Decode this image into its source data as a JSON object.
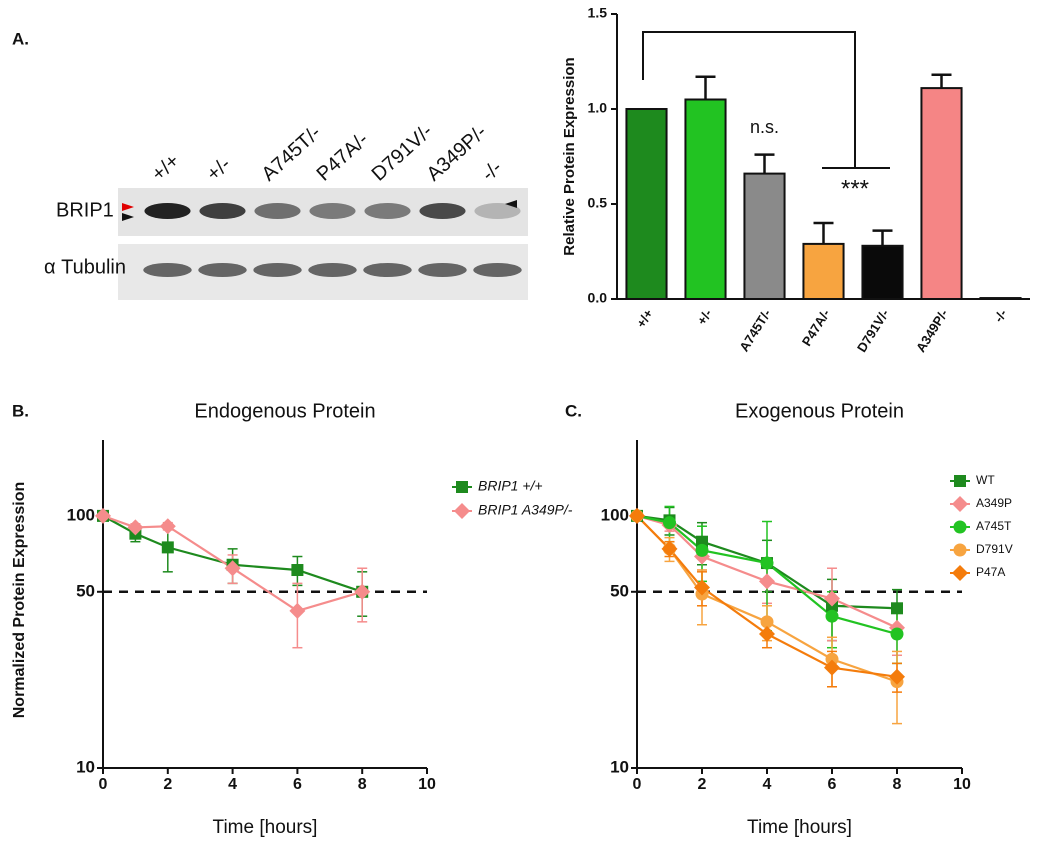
{
  "panel_labels": [
    "A.",
    "B.",
    "C."
  ],
  "blot": {
    "lanes": [
      "+/+",
      "+/-",
      "A745T/-",
      "P47A/-",
      "D791V/-",
      "A349P/-",
      "-/-"
    ],
    "rows": [
      "BRIP1",
      "α Tubulin"
    ]
  },
  "chart_data": [
    {
      "type": "bar",
      "ylabel": "Relative Protein Expression",
      "categories": [
        "+/+",
        "+/-",
        "A745T/-",
        "P47A/-",
        "D791V/-",
        "A349P/-",
        "-/-"
      ],
      "values": [
        1.0,
        1.05,
        0.66,
        0.29,
        0.28,
        1.11,
        0.005
      ],
      "errors": [
        0,
        0.12,
        0.1,
        0.11,
        0.08,
        0.07,
        0
      ],
      "colors": [
        "#1e8a1e",
        "#22c322",
        "#8a8a8a",
        "#f7a440",
        "#0a0a0a",
        "#f58585",
        "#888888"
      ],
      "ylim": [
        0,
        1.5
      ],
      "yticks": [
        {
          "value": 0,
          "label": "0.0"
        },
        {
          "value": 0.5,
          "label": "0.5"
        },
        {
          "value": 1,
          "label": "1.0"
        },
        {
          "value": 1.5,
          "label": "1.5"
        }
      ],
      "annotations": [
        "n.s.",
        "***"
      ]
    },
    {
      "type": "line",
      "title": "Endogenous Protein",
      "xlabel": "Time [hours]",
      "ylabel": "Normalized Protein Expression",
      "x": [
        0,
        1,
        2,
        4,
        6,
        8
      ],
      "series": [
        {
          "name": "BRIP1 +/+",
          "color": "#1e8a1e",
          "marker": "square",
          "values": [
            100,
            85,
            75,
            64,
            61,
            50
          ],
          "errors": [
            0,
            6,
            15,
            10,
            8,
            10
          ]
        },
        {
          "name": "BRIP1 A349P/-",
          "color": "#f58c8c",
          "marker": "diamond",
          "values": [
            100,
            90,
            91,
            62,
            42,
            50
          ],
          "errors": [
            0,
            3,
            3,
            8,
            12,
            12
          ]
        }
      ],
      "xlim": [
        0,
        10
      ],
      "xticks": [
        0,
        2,
        4,
        6,
        8,
        10
      ],
      "ylog": true,
      "ylim": [
        10,
        200
      ],
      "yticks": [
        10,
        50,
        100
      ],
      "reference_line": 50
    },
    {
      "type": "line",
      "title": "Exogenous Protein",
      "xlabel": "Time [hours]",
      "x": [
        0,
        1,
        2,
        4,
        6,
        8
      ],
      "series": [
        {
          "name": "WT",
          "color": "#1e8a1e",
          "marker": "square",
          "values": [
            100,
            96,
            79,
            65,
            44,
            43
          ],
          "errors": [
            0,
            12,
            15,
            15,
            12,
            8
          ]
        },
        {
          "name": "A349P",
          "color": "#f58c8c",
          "marker": "diamond",
          "values": [
            100,
            92,
            69,
            55,
            47,
            36
          ],
          "errors": [
            0,
            5,
            8,
            10,
            15,
            8
          ]
        },
        {
          "name": "A745T",
          "color": "#22c322",
          "marker": "circle",
          "values": [
            100,
            94,
            73,
            65,
            40,
            34
          ],
          "errors": [
            0,
            15,
            18,
            30,
            10,
            8
          ]
        },
        {
          "name": "D791V",
          "color": "#f7a440",
          "marker": "circle",
          "values": [
            100,
            74,
            49,
            38,
            27,
            22
          ],
          "errors": [
            0,
            8,
            12,
            6,
            6,
            7
          ]
        },
        {
          "name": "P47A",
          "color": "#f47c0c",
          "marker": "diamond",
          "values": [
            100,
            74,
            52,
            34,
            25,
            23
          ],
          "errors": [
            0,
            5,
            8,
            4,
            4,
            3
          ]
        }
      ],
      "xlim": [
        0,
        10
      ],
      "xticks": [
        0,
        2,
        4,
        6,
        8,
        10
      ],
      "ylog": true,
      "ylim": [
        10,
        200
      ],
      "yticks": [
        10,
        50,
        100
      ],
      "reference_line": 50
    }
  ]
}
